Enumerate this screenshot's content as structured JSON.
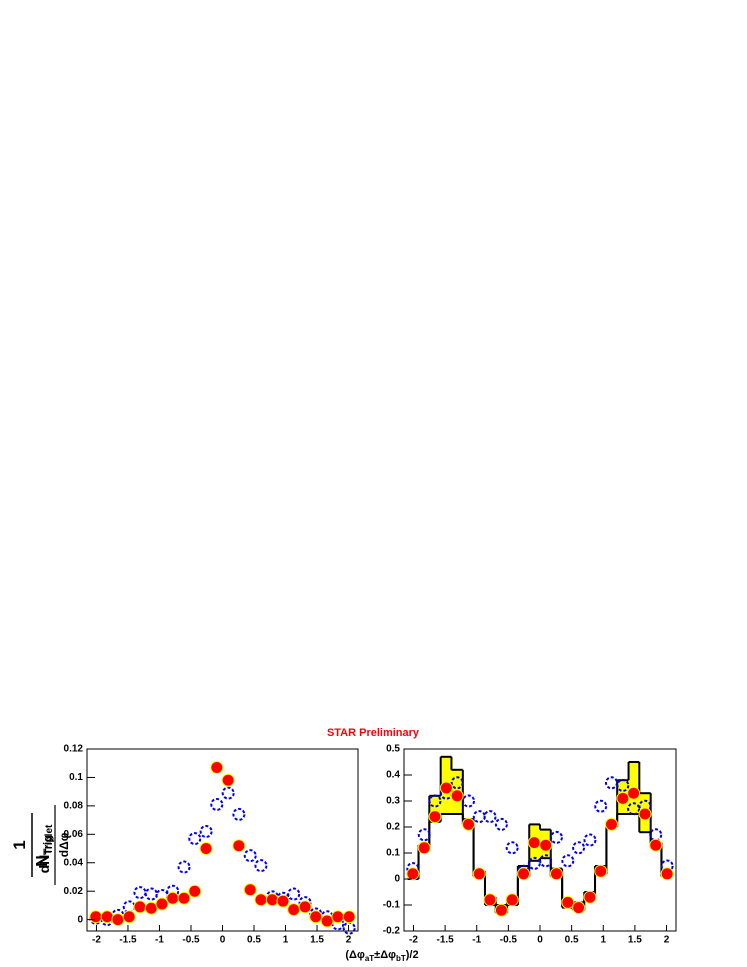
{
  "title": "STAR Preliminary",
  "y_label": {
    "numerator_1": "1",
    "denominator_1": "N",
    "denominator_1_sub": "Trig",
    "numerator_2": "dN",
    "numerator_2_sub": "Triplet",
    "denominator_2": "dΔφ"
  },
  "x_label": {
    "open": "(Δφ",
    "sub_a": "aT",
    "mid": "±Δφ",
    "sub_b": "bT",
    "close": ")/2"
  },
  "chart_data": [
    {
      "type": "scatter",
      "x": [
        -2.01,
        -1.83,
        -1.66,
        -1.48,
        -1.31,
        -1.13,
        -0.96,
        -0.79,
        -0.61,
        -0.44,
        -0.26,
        -0.09,
        0.09,
        0.26,
        0.44,
        0.61,
        0.79,
        0.96,
        1.13,
        1.31,
        1.48,
        1.66,
        1.83,
        2.01
      ],
      "series": [
        {
          "color": "#0000ee",
          "marker": "open",
          "values": [
            0.001,
            0.0,
            0.003,
            0.009,
            0.019,
            0.018,
            0.017,
            0.02,
            0.037,
            0.057,
            0.062,
            0.081,
            0.089,
            0.074,
            0.045,
            0.038,
            0.016,
            0.015,
            0.018,
            0.012,
            0.004,
            0.002,
            -0.003,
            -0.006
          ]
        },
        {
          "color": "#ff0000",
          "marker": "filled",
          "values": [
            0.002,
            0.002,
            0.0,
            0.002,
            0.009,
            0.008,
            0.011,
            0.015,
            0.015,
            0.02,
            0.05,
            0.107,
            0.098,
            0.052,
            0.021,
            0.014,
            0.014,
            0.013,
            0.007,
            0.009,
            0.002,
            -0.001,
            0.002,
            0.002
          ]
        }
      ],
      "xlim": [
        -2.15,
        2.15
      ],
      "xticks": [
        -2,
        -1.5,
        -1,
        -0.5,
        0,
        0.5,
        1,
        1.5,
        2
      ],
      "ylim": [
        -0.008,
        0.12
      ],
      "yticks": [
        0,
        0.02,
        0.04,
        0.06,
        0.08,
        0.1,
        0.12
      ]
    },
    {
      "type": "scatter",
      "x": [
        -2.01,
        -1.83,
        -1.66,
        -1.48,
        -1.31,
        -1.13,
        -0.96,
        -0.79,
        -0.61,
        -0.44,
        -0.26,
        -0.09,
        0.09,
        0.26,
        0.44,
        0.61,
        0.79,
        0.96,
        1.13,
        1.31,
        1.48,
        1.66,
        1.83,
        2.01
      ],
      "bins": [
        -2.09,
        -1.92,
        -1.75,
        -1.57,
        -1.4,
        -1.22,
        -1.05,
        -0.87,
        -0.7,
        -0.52,
        -0.35,
        -0.17,
        0,
        0.17,
        0.35,
        0.52,
        0.7,
        0.87,
        1.05,
        1.22,
        1.4,
        1.57,
        1.75,
        1.92,
        2.09
      ],
      "band_color": "#ffff00",
      "sys_upper": [
        0.02,
        0.13,
        0.32,
        0.47,
        0.42,
        0.23,
        0.03,
        -0.07,
        -0.1,
        -0.07,
        0.05,
        0.21,
        0.19,
        0.04,
        -0.08,
        -0.09,
        -0.05,
        0.05,
        0.22,
        0.38,
        0.45,
        0.33,
        0.14,
        0.03
      ],
      "sys_lower": [
        0.0,
        0.11,
        0.22,
        0.25,
        0.25,
        0.21,
        0.01,
        -0.1,
        -0.13,
        -0.1,
        0.01,
        0.07,
        0.08,
        0.01,
        -0.11,
        -0.12,
        -0.08,
        0.02,
        0.2,
        0.25,
        0.25,
        0.18,
        0.12,
        0.01
      ],
      "series": [
        {
          "color": "#0000ee",
          "marker": "open",
          "values": [
            0.04,
            0.17,
            0.3,
            0.33,
            0.37,
            0.3,
            0.24,
            0.24,
            0.21,
            0.12,
            0.03,
            0.06,
            0.07,
            0.16,
            0.07,
            0.12,
            0.15,
            0.28,
            0.37,
            0.36,
            0.27,
            0.28,
            0.17,
            0.05
          ]
        },
        {
          "color": "#ff0000",
          "marker": "filled",
          "values": [
            0.02,
            0.12,
            0.24,
            0.35,
            0.32,
            0.21,
            0.02,
            -0.08,
            -0.12,
            -0.08,
            0.02,
            0.14,
            0.13,
            0.02,
            -0.09,
            -0.11,
            -0.07,
            0.03,
            0.21,
            0.31,
            0.33,
            0.25,
            0.13,
            0.02
          ]
        }
      ],
      "xlim": [
        -2.15,
        2.15
      ],
      "xticks": [
        -2,
        -1.5,
        -1,
        -0.5,
        0,
        0.5,
        1,
        1.5,
        2
      ],
      "ylim": [
        -0.2,
        0.5
      ],
      "yticks": [
        -0.2,
        -0.1,
        0,
        0.1,
        0.2,
        0.3,
        0.4,
        0.5
      ]
    }
  ]
}
